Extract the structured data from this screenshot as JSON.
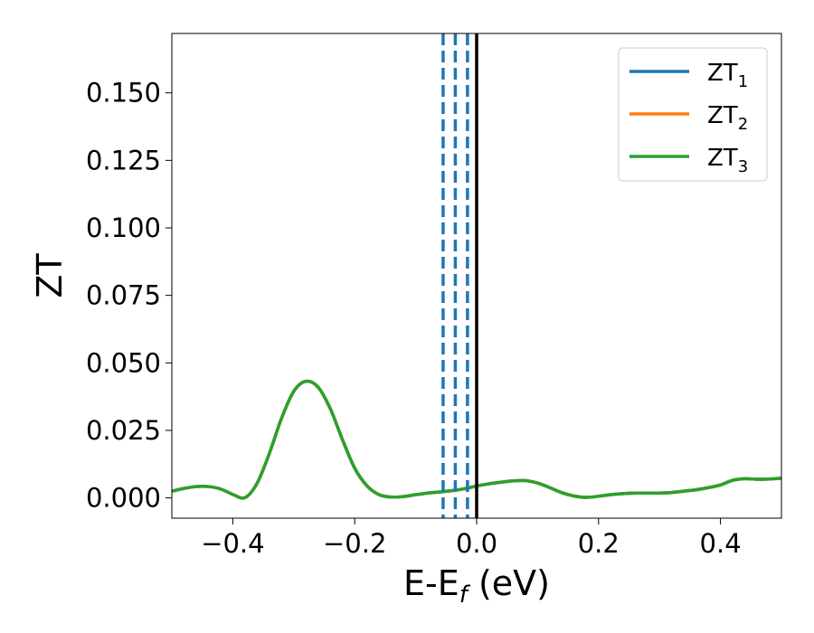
{
  "chart_data": {
    "type": "line",
    "title": "",
    "xlabel": "E-E",
    "xlabel_sub": "f",
    "xlabel_unit": " (eV)",
    "ylabel": "ZT",
    "xlim": [
      -0.5,
      0.5
    ],
    "ylim": [
      -0.0075,
      0.172
    ],
    "xticks": [
      -0.4,
      -0.2,
      0.0,
      0.2,
      0.4
    ],
    "xtick_labels": [
      "−0.4",
      "−0.2",
      "0.0",
      "0.2",
      "0.4"
    ],
    "yticks": [
      0.0,
      0.025,
      0.05,
      0.075,
      0.1,
      0.125,
      0.15
    ],
    "ytick_labels": [
      "0.000",
      "0.025",
      "0.050",
      "0.075",
      "0.100",
      "0.125",
      "0.150"
    ],
    "grid": false,
    "legend_position": "top-right",
    "series": [
      {
        "name": "ZT",
        "name_sub": "1",
        "color": "#1f77b4",
        "x": [
          -0.5,
          -0.48,
          -0.46,
          -0.44,
          -0.42,
          -0.4,
          -0.38,
          -0.36,
          -0.34,
          -0.32,
          -0.3,
          -0.28,
          -0.26,
          -0.24,
          -0.22,
          -0.2,
          -0.18,
          -0.16,
          -0.14,
          -0.12,
          -0.1,
          -0.08,
          -0.06,
          -0.04,
          -0.02,
          0.0,
          0.02,
          0.04,
          0.06,
          0.08,
          0.1,
          0.12,
          0.14,
          0.16,
          0.18,
          0.2,
          0.22,
          0.24,
          0.26,
          0.28,
          0.3,
          0.32,
          0.34,
          0.36,
          0.38,
          0.4,
          0.42,
          0.44,
          0.46,
          0.48,
          0.5
        ],
        "y": [
          0.0025,
          0.0035,
          0.0042,
          0.0042,
          0.0033,
          0.0013,
          0.0001,
          0.0055,
          0.0165,
          0.0295,
          0.0395,
          0.0432,
          0.041,
          0.033,
          0.0215,
          0.011,
          0.0045,
          0.0012,
          0.0003,
          0.0005,
          0.0012,
          0.0018,
          0.0022,
          0.0027,
          0.0034,
          0.0044,
          0.0052,
          0.0058,
          0.0063,
          0.0064,
          0.0055,
          0.0038,
          0.0019,
          0.0007,
          0.0002,
          0.0006,
          0.0012,
          0.0016,
          0.0018,
          0.0018,
          0.0018,
          0.002,
          0.0025,
          0.003,
          0.0038,
          0.0048,
          0.0065,
          0.0071,
          0.0069,
          0.007,
          0.0073
        ]
      },
      {
        "name": "ZT",
        "name_sub": "2",
        "color": "#ff7f0e",
        "x": [
          -0.5,
          -0.48,
          -0.46,
          -0.44,
          -0.42,
          -0.4,
          -0.38,
          -0.36,
          -0.34,
          -0.32,
          -0.3,
          -0.28,
          -0.26,
          -0.24,
          -0.22,
          -0.2,
          -0.18,
          -0.16,
          -0.14,
          -0.12,
          -0.1,
          -0.08,
          -0.06,
          -0.04,
          -0.02,
          0.0,
          0.02,
          0.04,
          0.06,
          0.08,
          0.1,
          0.12,
          0.14,
          0.16,
          0.18,
          0.2,
          0.22,
          0.24,
          0.26,
          0.28,
          0.3,
          0.32,
          0.34,
          0.36,
          0.38,
          0.4,
          0.42,
          0.44,
          0.46,
          0.48,
          0.5
        ],
        "y": [
          0.0025,
          0.0035,
          0.0042,
          0.0042,
          0.0033,
          0.0013,
          0.0001,
          0.0055,
          0.0165,
          0.0295,
          0.0395,
          0.0432,
          0.041,
          0.033,
          0.0215,
          0.011,
          0.0045,
          0.0012,
          0.0003,
          0.0005,
          0.0012,
          0.0018,
          0.0022,
          0.0027,
          0.0034,
          0.0044,
          0.0052,
          0.0058,
          0.0063,
          0.0064,
          0.0055,
          0.0038,
          0.0019,
          0.0007,
          0.0002,
          0.0006,
          0.0012,
          0.0016,
          0.0018,
          0.0018,
          0.0018,
          0.002,
          0.0025,
          0.003,
          0.0038,
          0.0048,
          0.0065,
          0.0071,
          0.0069,
          0.007,
          0.0073
        ]
      },
      {
        "name": "ZT",
        "name_sub": "3",
        "color": "#2ca02c",
        "x": [
          -0.5,
          -0.48,
          -0.46,
          -0.44,
          -0.42,
          -0.4,
          -0.38,
          -0.36,
          -0.34,
          -0.32,
          -0.3,
          -0.28,
          -0.26,
          -0.24,
          -0.22,
          -0.2,
          -0.18,
          -0.16,
          -0.14,
          -0.12,
          -0.1,
          -0.08,
          -0.06,
          -0.04,
          -0.02,
          0.0,
          0.02,
          0.04,
          0.06,
          0.08,
          0.1,
          0.12,
          0.14,
          0.16,
          0.18,
          0.2,
          0.22,
          0.24,
          0.26,
          0.28,
          0.3,
          0.32,
          0.34,
          0.36,
          0.38,
          0.4,
          0.42,
          0.44,
          0.46,
          0.48,
          0.5
        ],
        "y": [
          0.0025,
          0.0035,
          0.0042,
          0.0042,
          0.0033,
          0.0013,
          0.0001,
          0.0055,
          0.0165,
          0.0295,
          0.0395,
          0.0432,
          0.041,
          0.033,
          0.0215,
          0.011,
          0.0045,
          0.0012,
          0.0003,
          0.0005,
          0.0012,
          0.0018,
          0.0022,
          0.0027,
          0.0034,
          0.0044,
          0.0052,
          0.0058,
          0.0063,
          0.0064,
          0.0055,
          0.0038,
          0.0019,
          0.0007,
          0.0002,
          0.0006,
          0.0012,
          0.0016,
          0.0018,
          0.0018,
          0.0018,
          0.002,
          0.0025,
          0.003,
          0.0038,
          0.0048,
          0.0065,
          0.0071,
          0.0069,
          0.007,
          0.0073
        ]
      }
    ],
    "vertical_lines": [
      {
        "x": -0.055,
        "style": "dashed",
        "color": "#1f77b4"
      },
      {
        "x": -0.035,
        "style": "dashed",
        "color": "#1f77b4"
      },
      {
        "x": -0.015,
        "style": "dashed",
        "color": "#1f77b4"
      },
      {
        "x": 0.0,
        "style": "solid",
        "color": "#000000"
      }
    ]
  }
}
